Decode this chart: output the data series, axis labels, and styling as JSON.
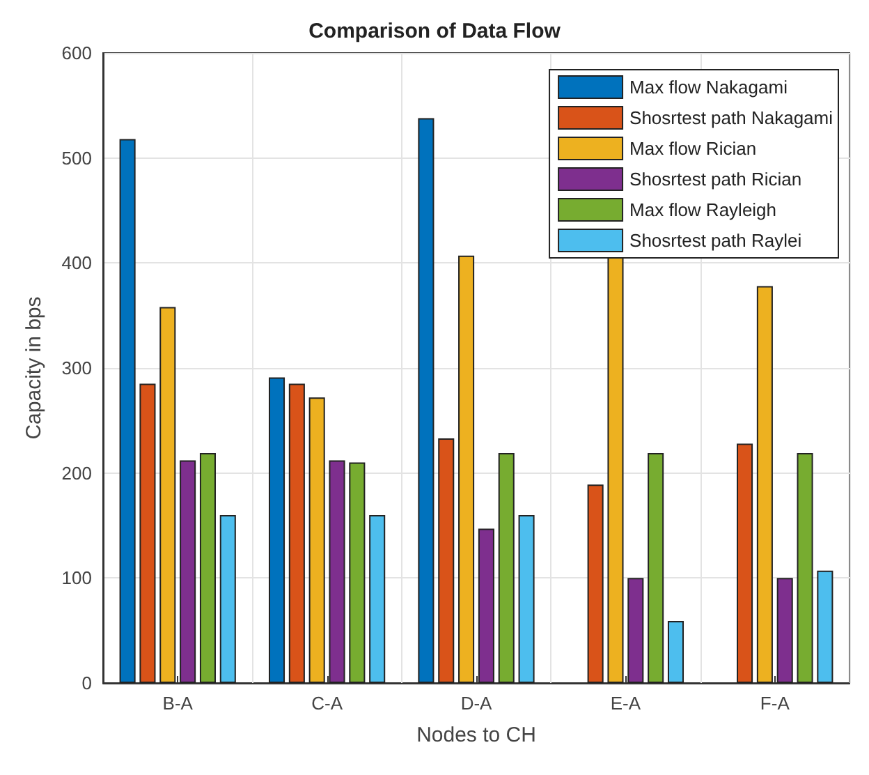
{
  "chart_data": {
    "type": "bar",
    "title": "Comparison of Data Flow",
    "xlabel": "Nodes to CH",
    "ylabel": "Capacity in bps",
    "categories": [
      "B-A",
      "C-A",
      "D-A",
      "E-A",
      "F-A"
    ],
    "series": [
      {
        "name": "Max flow Nakagami",
        "color": "#0072bd",
        "values": [
          518,
          291,
          538,
          null,
          null
        ]
      },
      {
        "name": "Shosrtest path Nakagami",
        "color": "#d95319",
        "values": [
          285,
          285,
          233,
          189,
          228
        ]
      },
      {
        "name": "Max flow Rician",
        "color": "#edb120",
        "values": [
          358,
          272,
          407,
          407,
          378
        ]
      },
      {
        "name": "Shosrtest path Rician",
        "color": "#7e2f8e",
        "values": [
          212,
          212,
          147,
          100,
          100
        ]
      },
      {
        "name": "Max flow Rayleigh",
        "color": "#77ac30",
        "values": [
          219,
          210,
          219,
          219,
          219
        ]
      },
      {
        "name": "Shosrtest path Raylei",
        "color": "#4dbeee",
        "values": [
          160,
          160,
          160,
          59,
          107
        ]
      }
    ],
    "ylim": [
      0,
      600
    ],
    "yticks": [
      0,
      100,
      200,
      300,
      400,
      500,
      600
    ],
    "grid": true,
    "legend": "top right"
  }
}
